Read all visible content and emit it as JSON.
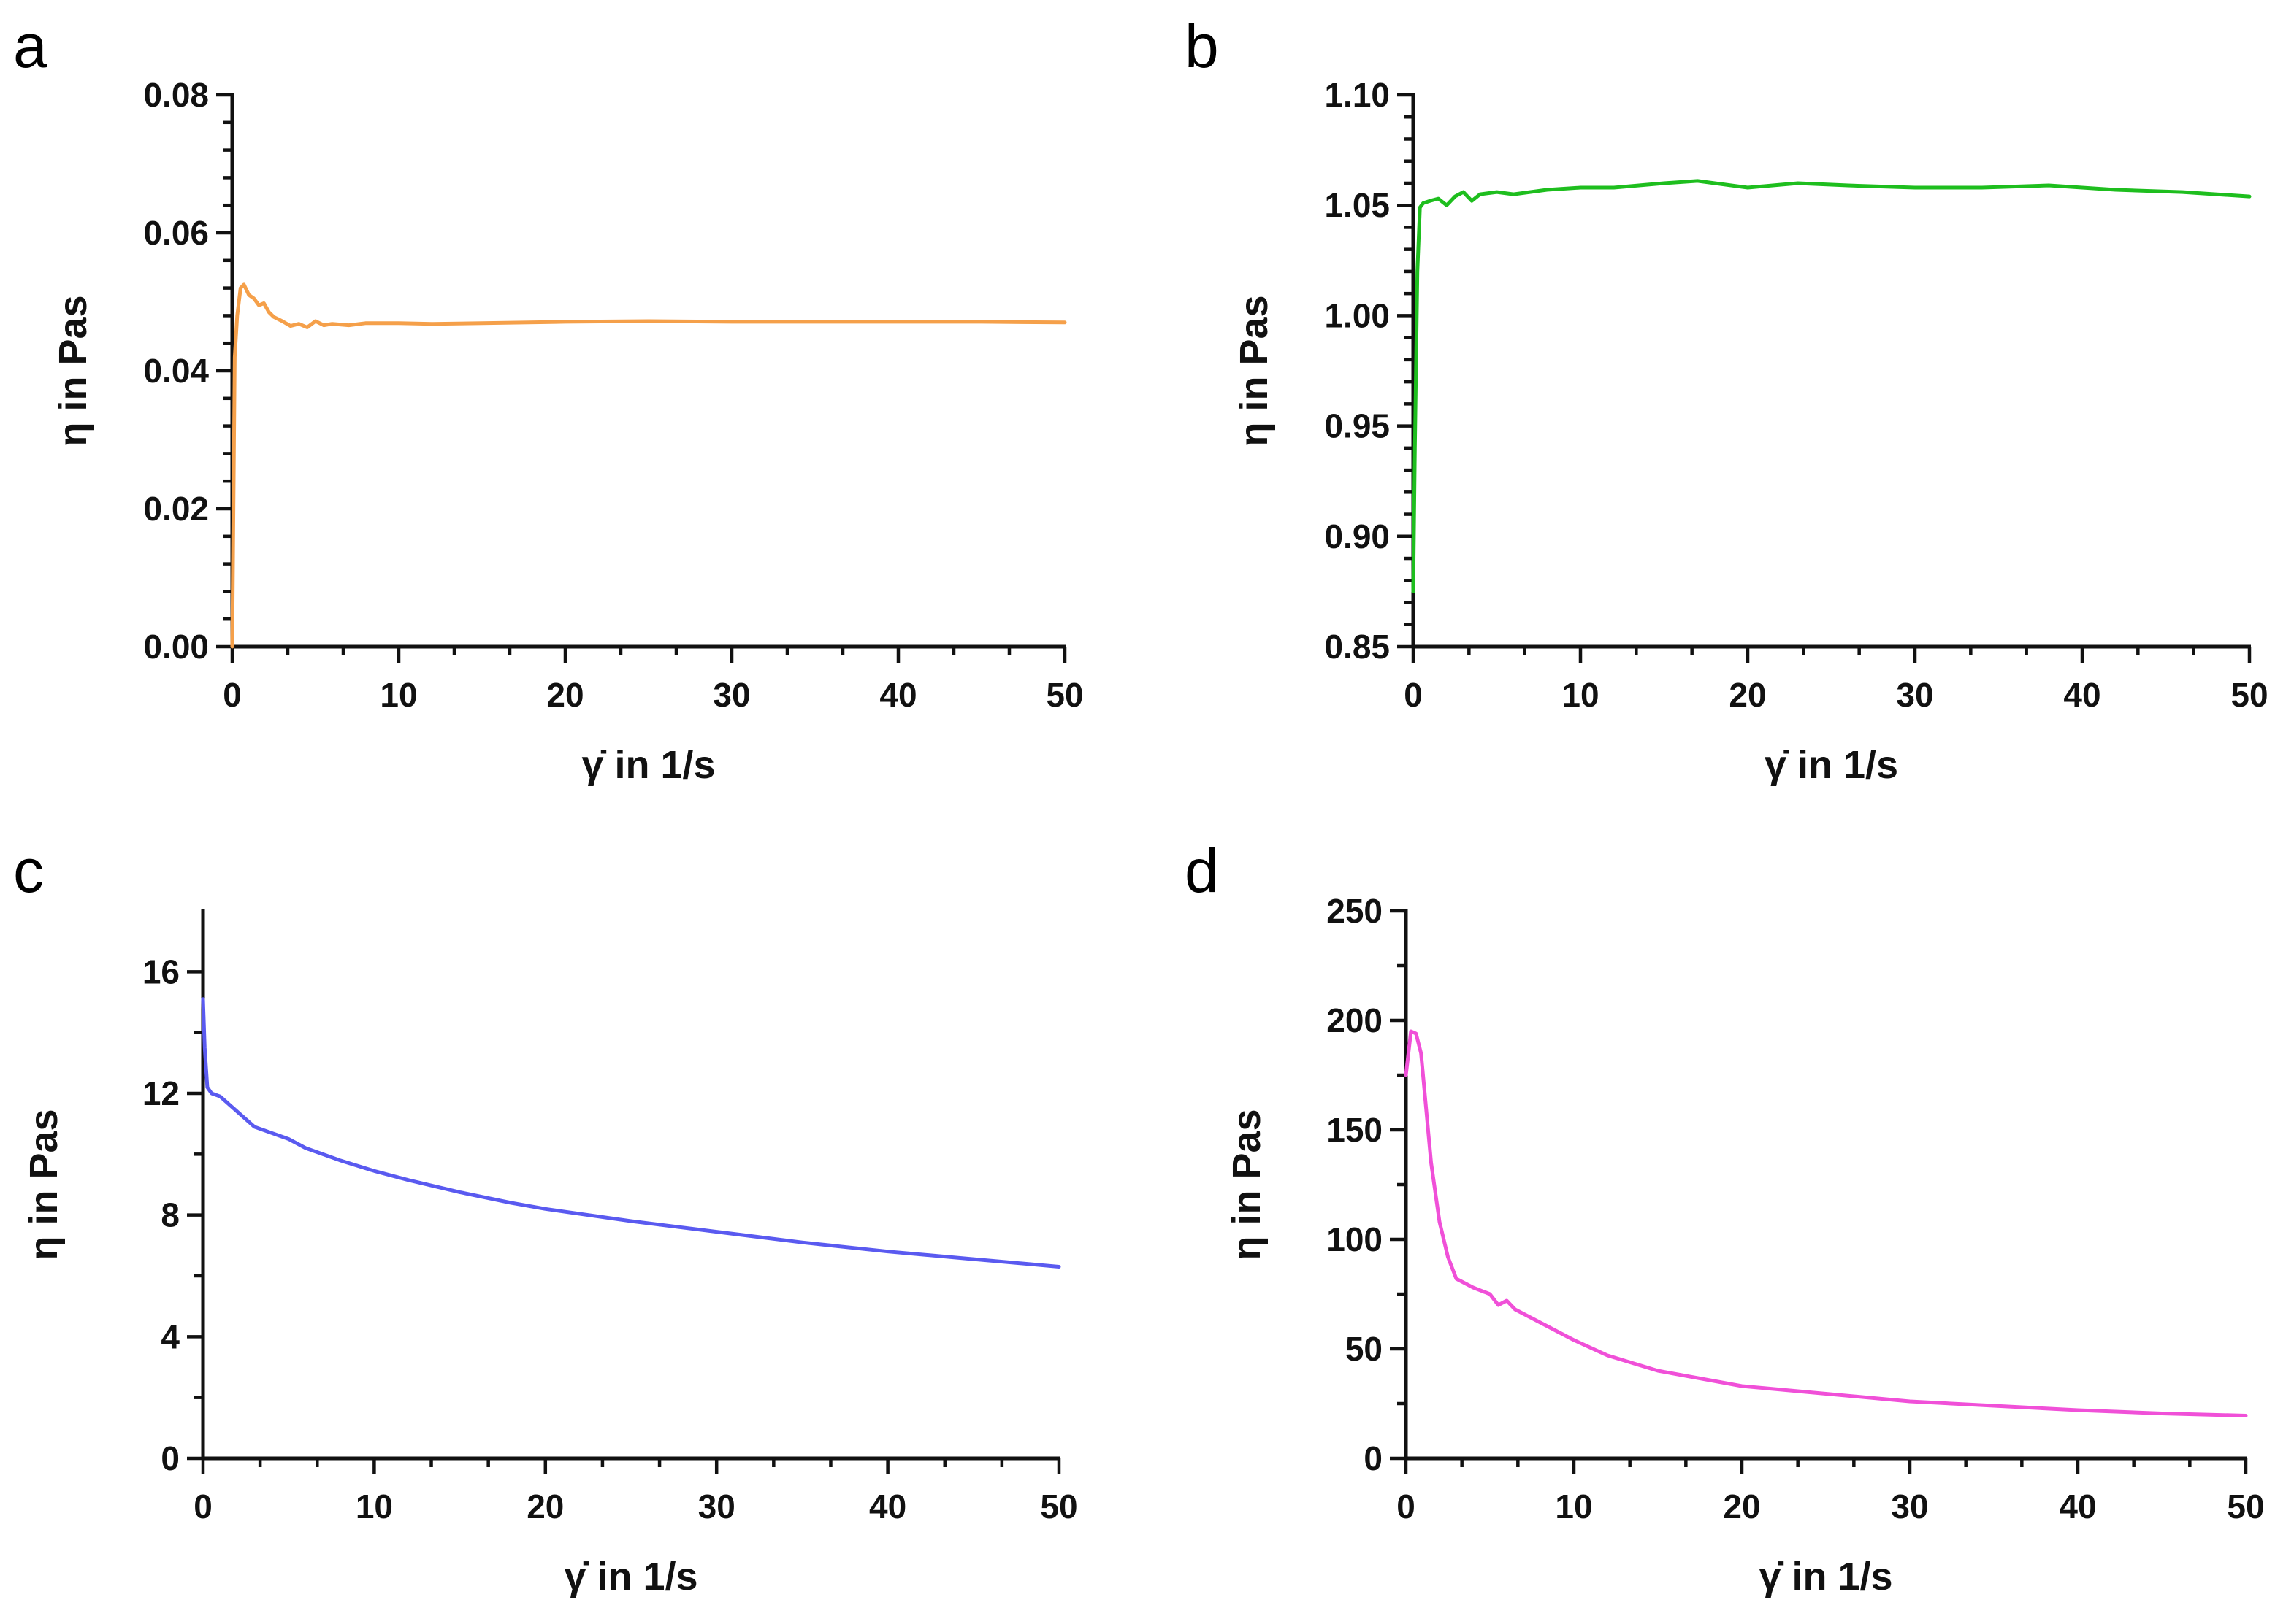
{
  "figure": {
    "panels": [
      "a",
      "b",
      "c",
      "d"
    ]
  },
  "chart_data": [
    {
      "panel": "a",
      "type": "line",
      "xlabel": "γ̇ in 1/s",
      "ylabel": "η in Pas",
      "xlim": [
        0,
        50
      ],
      "ylim": [
        0.0,
        0.08
      ],
      "xticks": [
        0,
        10,
        20,
        30,
        40,
        50
      ],
      "yticks": [
        0.0,
        0.02,
        0.04,
        0.06,
        0.08
      ],
      "ytick_labels": [
        "0.00",
        "0.02",
        "0.04",
        "0.06",
        "0.08"
      ],
      "xtick_labels": [
        "0",
        "10",
        "20",
        "30",
        "40",
        "50"
      ],
      "color": "#F5A04A",
      "series": [
        {
          "name": "a",
          "x": [
            0.0,
            0.15,
            0.3,
            0.5,
            0.7,
            1.0,
            1.3,
            1.6,
            1.9,
            2.2,
            2.5,
            3.0,
            3.5,
            4.0,
            4.5,
            5.0,
            5.5,
            6.0,
            7.0,
            8.0,
            10.0,
            12.0,
            15.0,
            20.0,
            25.0,
            30.0,
            35.0,
            40.0,
            45.0,
            50.0
          ],
          "y": [
            0.0,
            0.042,
            0.048,
            0.052,
            0.0525,
            0.051,
            0.0505,
            0.0495,
            0.0498,
            0.0485,
            0.0478,
            0.0472,
            0.0465,
            0.0468,
            0.0463,
            0.0472,
            0.0466,
            0.0468,
            0.0466,
            0.0469,
            0.0469,
            0.0468,
            0.0469,
            0.0471,
            0.0472,
            0.0471,
            0.0471,
            0.0471,
            0.0471,
            0.047
          ]
        }
      ]
    },
    {
      "panel": "b",
      "type": "line",
      "xlabel": "γ̇ in 1/s",
      "ylabel": "η in Pas",
      "xlim": [
        0,
        50
      ],
      "ylim": [
        0.85,
        1.1
      ],
      "xticks": [
        0,
        10,
        20,
        30,
        40,
        50
      ],
      "yticks": [
        0.85,
        0.9,
        0.95,
        1.0,
        1.05,
        1.1
      ],
      "ytick_labels": [
        "0.85",
        "0.90",
        "0.95",
        "1.00",
        "1.05",
        "1.10"
      ],
      "xtick_labels": [
        "0",
        "10",
        "20",
        "30",
        "40",
        "50"
      ],
      "color": "#1EBE1E",
      "series": [
        {
          "name": "b",
          "x": [
            0.0,
            0.1,
            0.25,
            0.4,
            0.6,
            1.0,
            1.5,
            2.0,
            2.5,
            3.0,
            3.5,
            4.0,
            5.0,
            6.0,
            8.0,
            10.0,
            12.0,
            15.0,
            17.0,
            20.0,
            23.0,
            26.0,
            30.0,
            34.0,
            38.0,
            42.0,
            46.0,
            50.0
          ],
          "y": [
            0.875,
            0.94,
            1.02,
            1.049,
            1.051,
            1.052,
            1.053,
            1.05,
            1.054,
            1.056,
            1.052,
            1.055,
            1.056,
            1.055,
            1.057,
            1.058,
            1.058,
            1.06,
            1.061,
            1.058,
            1.06,
            1.059,
            1.058,
            1.058,
            1.059,
            1.057,
            1.056,
            1.054
          ]
        }
      ]
    },
    {
      "panel": "c",
      "type": "line",
      "xlabel": "γ̇ in 1/s",
      "ylabel": "η in Pas",
      "xlim": [
        0,
        50
      ],
      "ylim": [
        0,
        18
      ],
      "xticks": [
        0,
        10,
        20,
        30,
        40,
        50
      ],
      "yticks": [
        0,
        4,
        8,
        12,
        16
      ],
      "ytick_labels": [
        "0",
        "4",
        "8",
        "12",
        "16"
      ],
      "xtick_labels": [
        "0",
        "10",
        "20",
        "30",
        "40",
        "50"
      ],
      "color": "#5A5AF0",
      "series": [
        {
          "name": "c",
          "x": [
            0.0,
            0.1,
            0.25,
            0.5,
            1.0,
            2.0,
            3.0,
            4.0,
            5.0,
            6.0,
            8.0,
            10.0,
            12.0,
            15.0,
            18.0,
            20.0,
            25.0,
            30.0,
            35.0,
            40.0,
            45.0,
            50.0
          ],
          "y": [
            15.1,
            13.5,
            12.2,
            12.0,
            11.9,
            11.4,
            10.9,
            10.7,
            10.5,
            10.2,
            9.8,
            9.45,
            9.15,
            8.75,
            8.4,
            8.2,
            7.8,
            7.45,
            7.1,
            6.8,
            6.55,
            6.3
          ]
        }
      ]
    },
    {
      "panel": "d",
      "type": "line",
      "xlabel": "γ̇ in 1/s",
      "ylabel": "η in Pas",
      "xlim": [
        0,
        50
      ],
      "ylim": [
        0,
        250
      ],
      "xticks": [
        0,
        10,
        20,
        30,
        40,
        50
      ],
      "yticks": [
        0,
        50,
        100,
        150,
        200,
        250
      ],
      "ytick_labels": [
        "0",
        "50",
        "100",
        "150",
        "200",
        "250"
      ],
      "xtick_labels": [
        "0",
        "10",
        "20",
        "30",
        "40",
        "50"
      ],
      "color": "#F050D8",
      "series": [
        {
          "name": "d",
          "x": [
            0.0,
            0.3,
            0.6,
            0.9,
            1.2,
            1.5,
            2.0,
            2.5,
            3.0,
            3.5,
            4.0,
            5.0,
            5.5,
            6.0,
            6.5,
            7.0,
            8.0,
            9.0,
            10.0,
            12.0,
            15.0,
            20.0,
            25.0,
            30.0,
            35.0,
            40.0,
            45.0,
            50.0
          ],
          "y": [
            175,
            195,
            194,
            185,
            160,
            135,
            108,
            92,
            82,
            80,
            78,
            75,
            70,
            72,
            68,
            66,
            62,
            58,
            54,
            47,
            40,
            33,
            29.5,
            26,
            24,
            22,
            20.5,
            19.5
          ]
        }
      ]
    }
  ]
}
